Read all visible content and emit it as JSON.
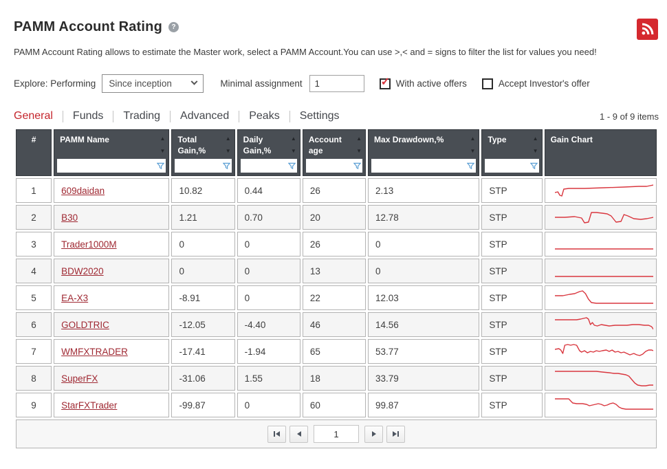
{
  "page": {
    "title": "PAMM Account Rating",
    "description": "PAMM Account Rating allows to estimate the Master work, select a PAMM Account.You can use >,< and = signs to filter the list for values you need!"
  },
  "controls": {
    "explore_label": "Explore: Performing",
    "period_value": "Since inception",
    "minimal_assignment_label": "Minimal assignment",
    "minimal_assignment_value": "1",
    "with_active_offers_label": "With active offers",
    "with_active_offers_checked": true,
    "accept_investors_offer_label": "Accept Investor's offer",
    "accept_investors_offer_checked": false
  },
  "tabs": [
    {
      "label": "General",
      "active": true
    },
    {
      "label": "Funds",
      "active": false
    },
    {
      "label": "Trading",
      "active": false
    },
    {
      "label": "Advanced",
      "active": false
    },
    {
      "label": "Peaks",
      "active": false
    },
    {
      "label": "Settings",
      "active": false
    }
  ],
  "items_count": "1 - 9 of 9 items",
  "table": {
    "columns": [
      {
        "label": "#",
        "sortable": false,
        "filterable": false
      },
      {
        "label": "PAMM Name",
        "sortable": true,
        "filterable": true
      },
      {
        "label": "Total Gain,%",
        "sortable": true,
        "filterable": true
      },
      {
        "label": "Daily Gain,%",
        "sortable": true,
        "filterable": true
      },
      {
        "label": "Account age",
        "sortable": true,
        "filterable": true
      },
      {
        "label": "Max Drawdown,%",
        "sortable": true,
        "filterable": true
      },
      {
        "label": "Type",
        "sortable": true,
        "filterable": true
      },
      {
        "label": "Gain Chart",
        "sortable": false,
        "filterable": false
      }
    ],
    "rows": [
      {
        "num": "1",
        "name": "609daidan",
        "total_gain": "10.82",
        "daily_gain": "0.44",
        "account_age": "26",
        "max_drawdown": "2.13",
        "type": "STP",
        "chart": [
          [
            0,
            17
          ],
          [
            3,
            16
          ],
          [
            5,
            21
          ],
          [
            7,
            22
          ],
          [
            9,
            12
          ],
          [
            14,
            11
          ],
          [
            30,
            11
          ],
          [
            50,
            10
          ],
          [
            70,
            9
          ],
          [
            85,
            8
          ],
          [
            93,
            8
          ],
          [
            100,
            6
          ]
        ]
      },
      {
        "num": "2",
        "name": "B30",
        "total_gain": "1.21",
        "daily_gain": "0.70",
        "account_age": "20",
        "max_drawdown": "12.78",
        "type": "STP",
        "chart": [
          [
            0,
            14
          ],
          [
            10,
            14
          ],
          [
            20,
            13
          ],
          [
            27,
            15
          ],
          [
            30,
            22
          ],
          [
            34,
            21
          ],
          [
            37,
            7
          ],
          [
            42,
            7
          ],
          [
            48,
            8
          ],
          [
            53,
            9
          ],
          [
            57,
            12
          ],
          [
            62,
            21
          ],
          [
            67,
            20
          ],
          [
            70,
            10
          ],
          [
            74,
            12
          ],
          [
            80,
            16
          ],
          [
            87,
            17
          ],
          [
            93,
            16
          ],
          [
            100,
            14
          ]
        ]
      },
      {
        "num": "3",
        "name": "Trader1000M",
        "total_gain": "0",
        "daily_gain": "0",
        "account_age": "26",
        "max_drawdown": "0",
        "type": "STP",
        "chart": [
          [
            0,
            21
          ],
          [
            100,
            21
          ]
        ]
      },
      {
        "num": "4",
        "name": "BDW2020",
        "total_gain": "0",
        "daily_gain": "0",
        "account_age": "13",
        "max_drawdown": "0",
        "type": "STP",
        "chart": [
          [
            0,
            22
          ],
          [
            100,
            22
          ]
        ]
      },
      {
        "num": "5",
        "name": "EA-X3",
        "total_gain": "-8.91",
        "daily_gain": "0",
        "account_age": "22",
        "max_drawdown": "12.03",
        "type": "STP",
        "chart": [
          [
            0,
            11
          ],
          [
            8,
            11
          ],
          [
            15,
            9
          ],
          [
            20,
            8
          ],
          [
            25,
            5
          ],
          [
            28,
            4
          ],
          [
            31,
            8
          ],
          [
            34,
            16
          ],
          [
            37,
            21
          ],
          [
            42,
            22
          ],
          [
            100,
            22
          ]
        ]
      },
      {
        "num": "6",
        "name": "GOLDTRIC",
        "total_gain": "-12.05",
        "daily_gain": "-4.40",
        "account_age": "46",
        "max_drawdown": "14.56",
        "type": "STP",
        "chart": [
          [
            0,
            7
          ],
          [
            12,
            7
          ],
          [
            22,
            7
          ],
          [
            26,
            6
          ],
          [
            29,
            5
          ],
          [
            32,
            4
          ],
          [
            34,
            6
          ],
          [
            36,
            14
          ],
          [
            38,
            11
          ],
          [
            40,
            15
          ],
          [
            43,
            16
          ],
          [
            47,
            14
          ],
          [
            51,
            15
          ],
          [
            55,
            16
          ],
          [
            61,
            15
          ],
          [
            67,
            15
          ],
          [
            73,
            15
          ],
          [
            79,
            14
          ],
          [
            85,
            14
          ],
          [
            91,
            15
          ],
          [
            95,
            15
          ],
          [
            98,
            17
          ],
          [
            100,
            21
          ]
        ]
      },
      {
        "num": "7",
        "name": "WMFXTRADER",
        "total_gain": "-17.41",
        "daily_gain": "-1.94",
        "account_age": "65",
        "max_drawdown": "53.77",
        "type": "STP",
        "chart": [
          [
            0,
            11
          ],
          [
            4,
            10
          ],
          [
            6,
            12
          ],
          [
            8,
            17
          ],
          [
            10,
            5
          ],
          [
            13,
            4
          ],
          [
            16,
            5
          ],
          [
            19,
            4
          ],
          [
            22,
            5
          ],
          [
            25,
            13
          ],
          [
            27,
            15
          ],
          [
            30,
            13
          ],
          [
            33,
            16
          ],
          [
            36,
            14
          ],
          [
            39,
            15
          ],
          [
            42,
            13
          ],
          [
            45,
            14
          ],
          [
            48,
            13
          ],
          [
            52,
            12
          ],
          [
            55,
            14
          ],
          [
            58,
            12
          ],
          [
            61,
            15
          ],
          [
            64,
            14
          ],
          [
            67,
            16
          ],
          [
            70,
            15
          ],
          [
            73,
            17
          ],
          [
            76,
            19
          ],
          [
            80,
            17
          ],
          [
            83,
            19
          ],
          [
            86,
            20
          ],
          [
            89,
            18
          ],
          [
            92,
            14
          ],
          [
            95,
            12
          ],
          [
            98,
            12
          ],
          [
            100,
            13
          ]
        ]
      },
      {
        "num": "8",
        "name": "SuperFX",
        "total_gain": "-31.06",
        "daily_gain": "1.55",
        "account_age": "18",
        "max_drawdown": "33.79",
        "type": "STP",
        "chart": [
          [
            0,
            4
          ],
          [
            15,
            4
          ],
          [
            30,
            4
          ],
          [
            42,
            4
          ],
          [
            48,
            5
          ],
          [
            55,
            6
          ],
          [
            60,
            7
          ],
          [
            64,
            7
          ],
          [
            68,
            8
          ],
          [
            72,
            9
          ],
          [
            75,
            11
          ],
          [
            78,
            16
          ],
          [
            81,
            21
          ],
          [
            84,
            24
          ],
          [
            88,
            25
          ],
          [
            92,
            25
          ],
          [
            96,
            24
          ],
          [
            100,
            24
          ]
        ]
      },
      {
        "num": "9",
        "name": "StarFXTrader",
        "total_gain": "-99.87",
        "daily_gain": "0",
        "account_age": "60",
        "max_drawdown": "99.87",
        "type": "STP",
        "chart": [
          [
            0,
            5
          ],
          [
            8,
            5
          ],
          [
            14,
            5
          ],
          [
            16,
            8
          ],
          [
            18,
            11
          ],
          [
            22,
            12
          ],
          [
            28,
            12
          ],
          [
            32,
            13
          ],
          [
            35,
            15
          ],
          [
            38,
            14
          ],
          [
            41,
            13
          ],
          [
            44,
            12
          ],
          [
            47,
            13
          ],
          [
            50,
            15
          ],
          [
            53,
            14
          ],
          [
            56,
            12
          ],
          [
            59,
            11
          ],
          [
            62,
            13
          ],
          [
            65,
            17
          ],
          [
            68,
            19
          ],
          [
            72,
            20
          ],
          [
            80,
            20
          ],
          [
            90,
            20
          ],
          [
            100,
            20
          ]
        ]
      }
    ]
  },
  "pagination": {
    "page": "1"
  },
  "colors": {
    "accent_red": "#c4242b",
    "rss_red": "#d5292f",
    "header_bg": "#494e54",
    "link_red": "#9f2832",
    "sparkline_red": "#d9363e",
    "filter_funnel_blue": "#5b9fd4",
    "row_alt_bg": "#f5f5f5"
  }
}
